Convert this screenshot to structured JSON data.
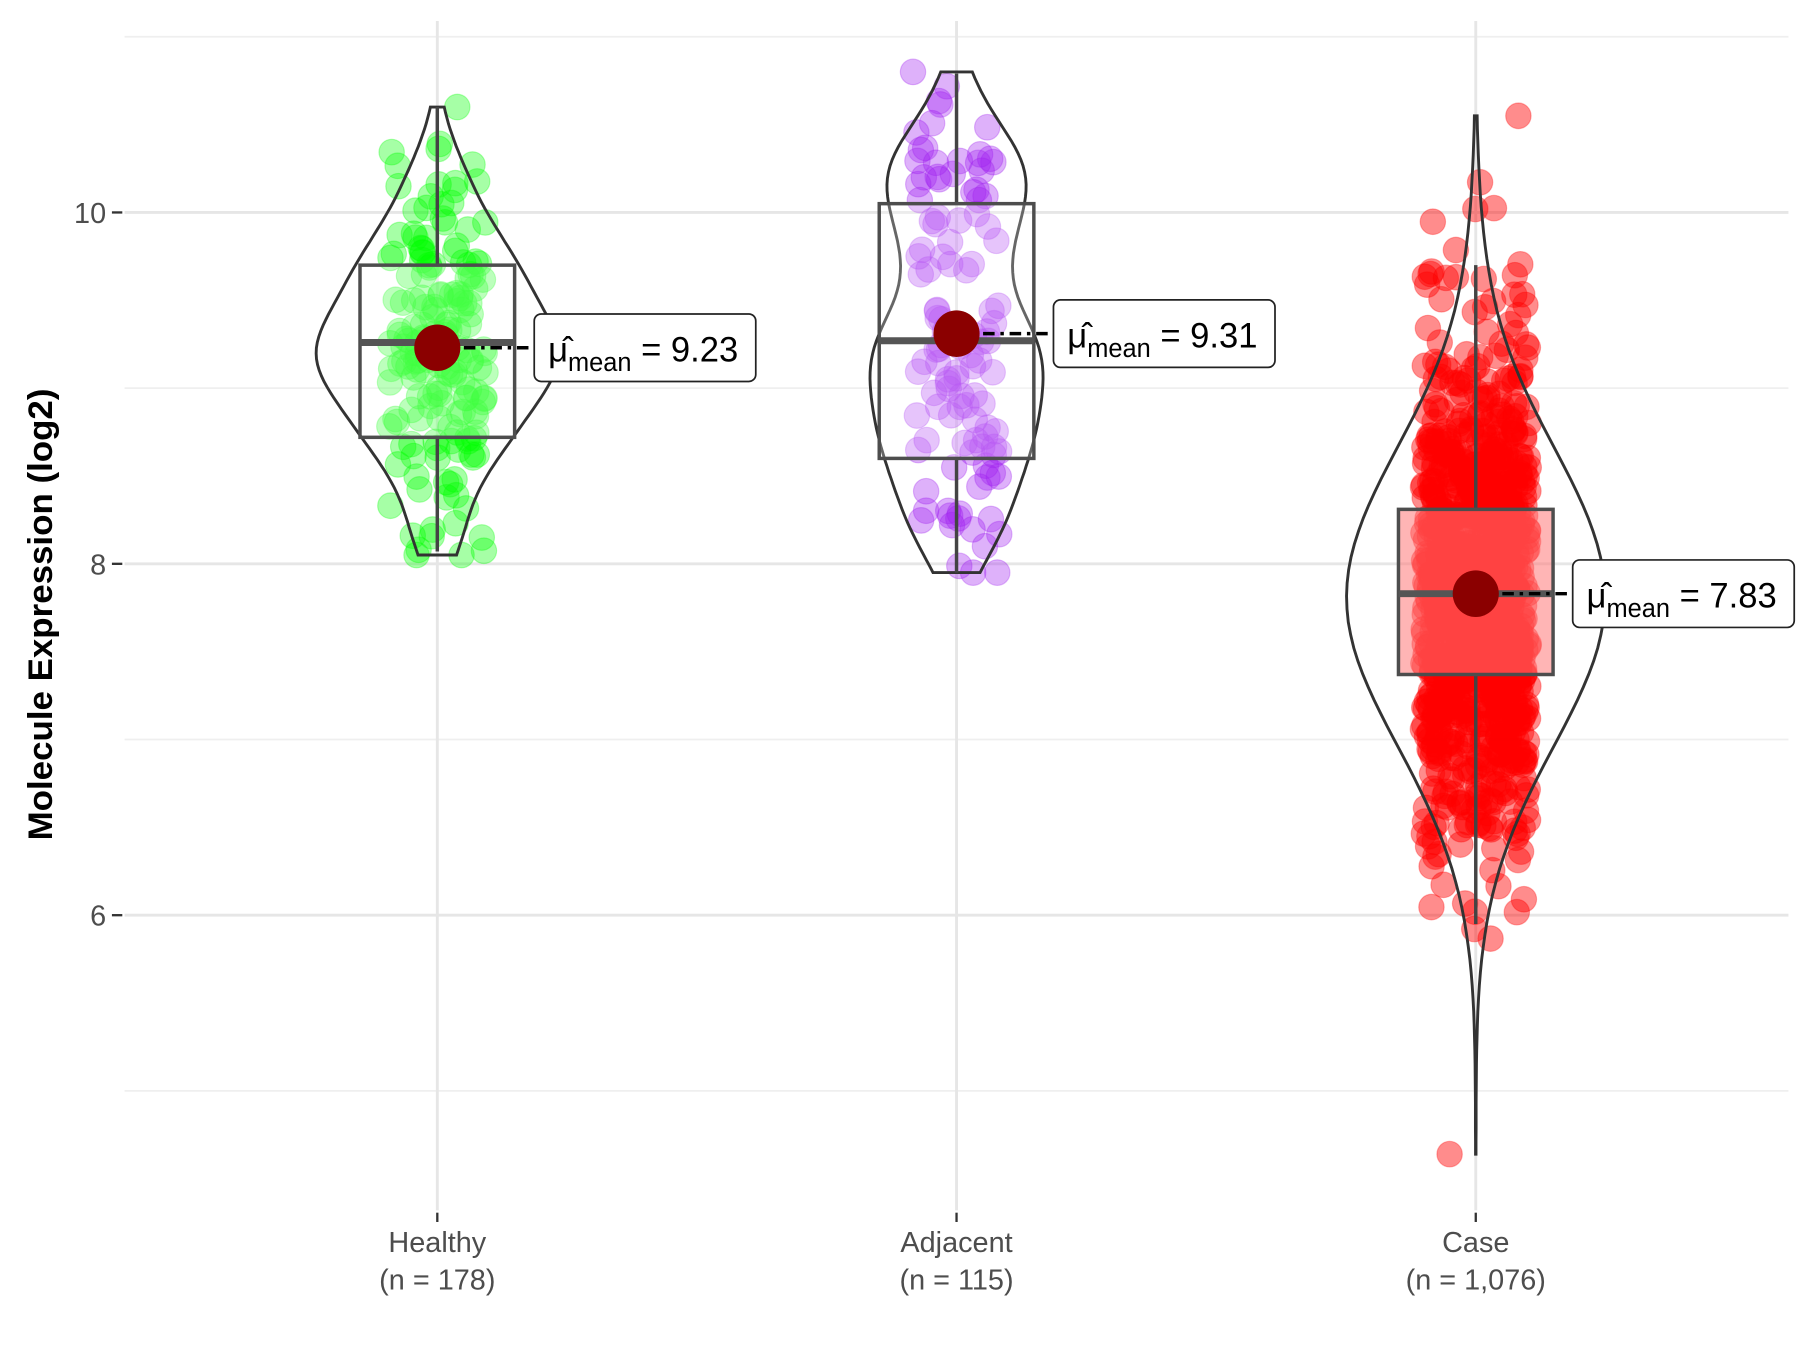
{
  "chart_data": {
    "type": "violin",
    "title": "",
    "xlabel": "",
    "ylabel": "Molecule Expression (log2)",
    "ylim": [
      4.32,
      11.09
    ],
    "yticks": [
      6,
      8,
      10
    ],
    "ytick_labels": [
      "6",
      "8",
      "10"
    ],
    "grid": true,
    "legend": "none",
    "groups": [
      {
        "name": "Healthy",
        "n_label": "(n = 178)",
        "n": 178,
        "color": "#00FF00",
        "mean": 9.23,
        "mean_label": "9.23",
        "median": 9.26,
        "q1": 8.72,
        "q3": 9.7,
        "whisker_low": 8.07,
        "whisker_high": 10.6,
        "min": 8.05,
        "max": 10.6
      },
      {
        "name": "Adjacent",
        "n_label": "(n = 115)",
        "n": 115,
        "color": "#A020F0",
        "mean": 9.31,
        "mean_label": "9.31",
        "median": 9.27,
        "q1": 8.6,
        "q3": 10.05,
        "whisker_low": 7.95,
        "whisker_high": 10.79,
        "min": 7.95,
        "max": 10.8
      },
      {
        "name": "Case",
        "n_label": "(n = 1,076)",
        "n": 1076,
        "color": "#FF0000",
        "mean": 7.83,
        "mean_label": "7.83",
        "median": 7.83,
        "q1": 7.37,
        "q3": 8.31,
        "whisker_low": 5.95,
        "whisker_high": 9.7,
        "min": 4.64,
        "max": 10.55
      }
    ],
    "mean_point_color": "#8B0000",
    "mean_symbol": "μ̂",
    "mean_subscript": "mean",
    "mean_equals": "="
  }
}
